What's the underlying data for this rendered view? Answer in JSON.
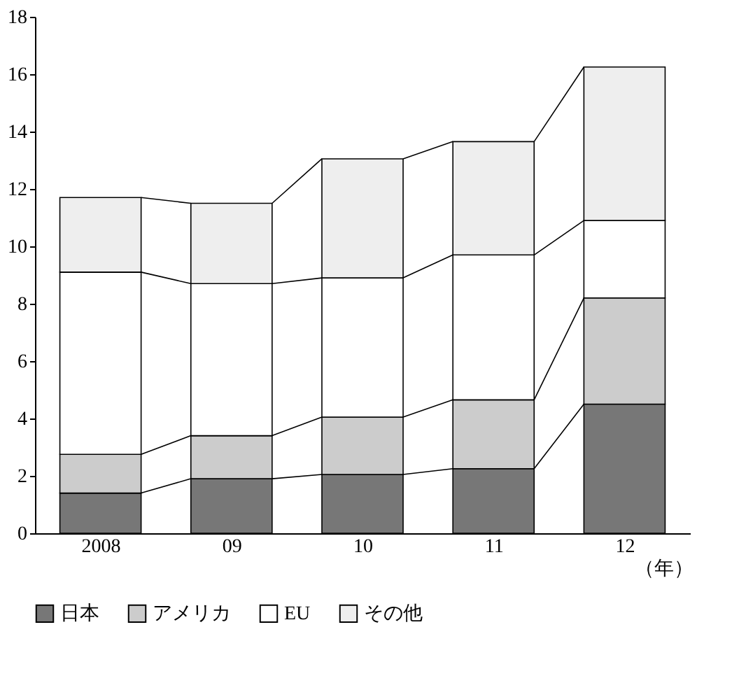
{
  "chart_data": {
    "type": "bar",
    "stacked": true,
    "categories": [
      "2008",
      "09",
      "10",
      "11",
      "12"
    ],
    "xlabel": "（年）",
    "series": [
      {
        "name": "日本",
        "color": "#777777",
        "values": [
          1.4,
          1.9,
          2.05,
          2.25,
          4.5
        ]
      },
      {
        "name": "アメリカ",
        "color": "#cccccc",
        "values": [
          1.35,
          1.5,
          2.0,
          2.4,
          3.7
        ]
      },
      {
        "name": "EU",
        "color": "#ffffff",
        "values": [
          6.35,
          5.3,
          4.85,
          5.05,
          2.7
        ]
      },
      {
        "name": "その他",
        "color": "#eeeeee",
        "values": [
          2.6,
          2.8,
          4.15,
          3.95,
          5.35
        ]
      }
    ],
    "ylim": [
      0,
      18
    ],
    "yticks": [
      0,
      2,
      4,
      6,
      8,
      10,
      12,
      14,
      16,
      18
    ],
    "grid": false,
    "legend": "bottom"
  }
}
